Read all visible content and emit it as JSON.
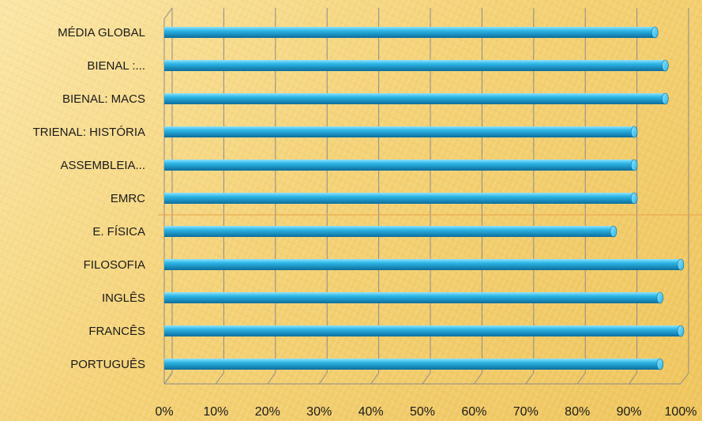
{
  "chart_data": {
    "type": "bar",
    "orientation": "horizontal",
    "title": "",
    "xlabel": "",
    "ylabel": "",
    "categories": [
      "MÉDIA GLOBAL",
      "BIENAL :...",
      "BIENAL: MACS",
      "TRIENAL: HISTÓRIA",
      "ASSEMBLEIA...",
      "EMRC",
      "E. FÍSICA",
      "FILOSOFIA",
      "INGLÊS",
      "FRANCÊS",
      "PORTUGUÊS"
    ],
    "values": [
      95,
      97,
      97,
      91,
      91,
      91,
      87,
      100,
      96,
      100,
      96
    ],
    "xlim": [
      0,
      1
    ],
    "x_ticks": [
      "0%",
      "10%",
      "20%",
      "30%",
      "40%",
      "50%",
      "60%",
      "70%",
      "80%",
      "90%",
      "100%"
    ],
    "x_format": "percent",
    "grid": true,
    "legend": "none",
    "bar_color": "#2cb6e6",
    "bar_highlight": "#8ee3ff",
    "bar_shadow": "#0d6d9c"
  }
}
